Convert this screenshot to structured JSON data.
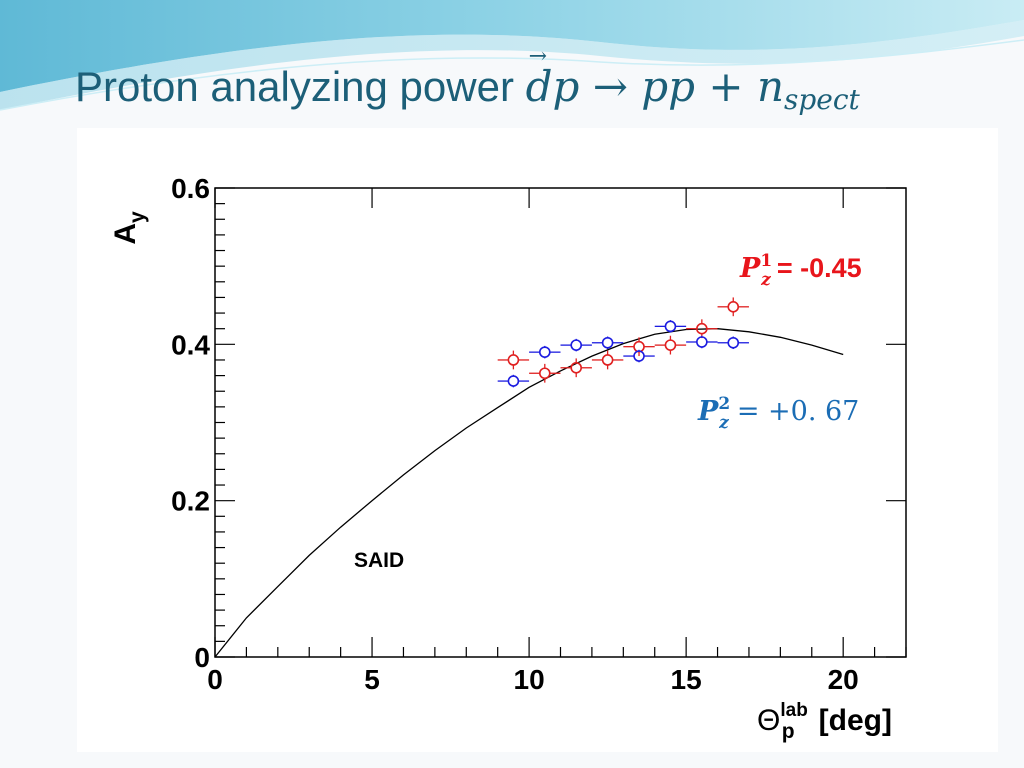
{
  "slide": {
    "title_text": "Proton analyzing power",
    "title_math_d": "d",
    "title_math_rest": "p → pp + n",
    "title_math_sub": "spect",
    "title_arrow": "→",
    "title_color": "#1c5f78"
  },
  "chart_data": {
    "type": "scatter",
    "title": "",
    "ylabel": "A",
    "ylabel_sub": "y",
    "xlabel_main": "Θ",
    "xlabel_sup": "lab",
    "xlabel_sub": "p",
    "xlabel_unit": "[deg]",
    "xlim": [
      0,
      22
    ],
    "ylim": [
      0,
      0.6
    ],
    "x_ticks": [
      0,
      5,
      10,
      15,
      20
    ],
    "y_ticks": [
      0,
      0.2,
      0.4,
      0.6
    ],
    "x_tick_labels": [
      "0",
      "5",
      "10",
      "15",
      "20"
    ],
    "y_tick_labels": [
      "0",
      "0.2",
      "0.4",
      "0.6"
    ],
    "grid": false,
    "series": [
      {
        "name": "SAID",
        "kind": "line",
        "color": "#000000",
        "x": [
          0,
          1,
          2,
          3,
          4,
          5,
          6,
          7,
          8,
          9,
          10,
          11,
          12,
          13,
          14,
          15,
          16,
          17,
          18,
          19,
          20
        ],
        "y": [
          0,
          0.05,
          0.09,
          0.13,
          0.166,
          0.2,
          0.233,
          0.264,
          0.293,
          0.319,
          0.345,
          0.366,
          0.385,
          0.401,
          0.413,
          0.419,
          0.42,
          0.416,
          0.409,
          0.399,
          0.387
        ]
      },
      {
        "name": "P_z^1 = -0.45",
        "kind": "points",
        "color": "#e02020",
        "x": [
          9.5,
          10.5,
          11.5,
          12.5,
          13.5,
          14.5,
          15.5,
          16.5
        ],
        "y": [
          0.38,
          0.363,
          0.37,
          0.38,
          0.397,
          0.399,
          0.42,
          0.448
        ],
        "xerr": 0.5,
        "yerr": 0.012
      },
      {
        "name": "P_z^2 = +0.67",
        "kind": "points",
        "color": "#1c1ce0",
        "x": [
          9.5,
          10.5,
          11.5,
          12.5,
          13.5,
          14.5,
          15.5,
          16.5
        ],
        "y": [
          0.353,
          0.39,
          0.399,
          0.402,
          0.385,
          0.423,
          0.403,
          0.402
        ],
        "xerr": 0.5,
        "yerr": 0.008
      }
    ],
    "annotations": {
      "said_label": "SAID",
      "p1_symbol": "P",
      "p1_sub": "z",
      "p1_sup": "1",
      "p1_value": "= -0.45",
      "p1_color": "#e8151b",
      "p2_symbol": "P",
      "p2_sub": "z",
      "p2_sup": "2",
      "p2_value": "= +0. 67",
      "p2_color": "#1b6db5"
    }
  }
}
